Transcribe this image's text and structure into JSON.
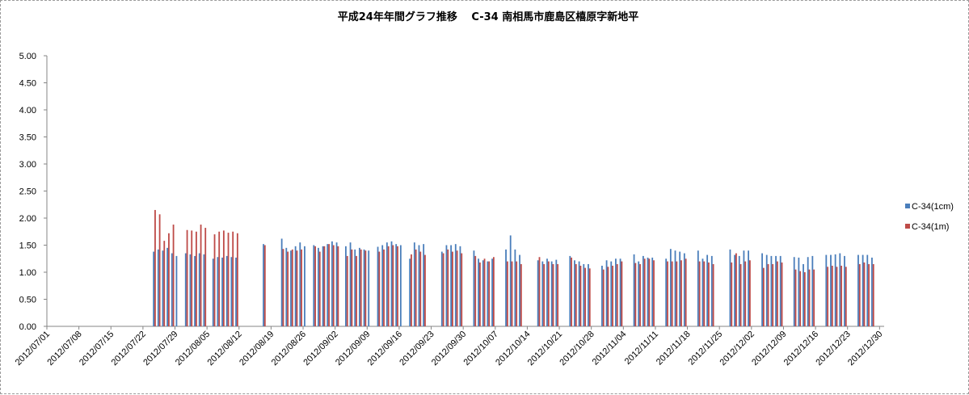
{
  "chart_data": {
    "type": "bar",
    "title": "平成24年年間グラフ推移　 C-34 南相馬市鹿島区橲原字新地平",
    "ylim": [
      0,
      5
    ],
    "yticks": [
      "0.00",
      "0.50",
      "1.00",
      "1.50",
      "2.00",
      "2.50",
      "3.00",
      "3.50",
      "4.00",
      "4.50",
      "5.00"
    ],
    "x_start": "2012/07/01",
    "x_end": "2012/12/30",
    "xticks": [
      "2012/07/01",
      "2012/07/08",
      "2012/07/15",
      "2012/07/22",
      "2012/07/29",
      "2012/08/05",
      "2012/08/12",
      "2012/08/19",
      "2012/08/26",
      "2012/09/02",
      "2012/09/09",
      "2012/09/16",
      "2012/09/23",
      "2012/09/30",
      "2012/10/07",
      "2012/10/14",
      "2012/10/21",
      "2012/10/28",
      "2012/11/04",
      "2012/11/11",
      "2012/11/18",
      "2012/11/25",
      "2012/12/02",
      "2012/12/09",
      "2012/12/16",
      "2012/12/23",
      "2012/12/30"
    ],
    "grid": false,
    "legend_position": "right",
    "series": [
      {
        "name": "C-34(1cm)",
        "color": "#4a7ebb",
        "points": [
          [
            "2012/07/24",
            1.38
          ],
          [
            "2012/07/25",
            1.42
          ],
          [
            "2012/07/26",
            1.4
          ],
          [
            "2012/07/27",
            1.45
          ],
          [
            "2012/07/28",
            1.35
          ],
          [
            "2012/07/29",
            1.3
          ],
          [
            "2012/07/31",
            1.35
          ],
          [
            "2012/08/01",
            1.33
          ],
          [
            "2012/08/02",
            1.3
          ],
          [
            "2012/08/03",
            1.35
          ],
          [
            "2012/08/04",
            1.33
          ],
          [
            "2012/08/06",
            1.25
          ],
          [
            "2012/08/07",
            1.28
          ],
          [
            "2012/08/08",
            1.27
          ],
          [
            "2012/08/09",
            1.3
          ],
          [
            "2012/08/10",
            1.28
          ],
          [
            "2012/08/11",
            1.27
          ],
          [
            "2012/08/17",
            1.52
          ],
          [
            "2012/08/21",
            1.62
          ],
          [
            "2012/08/22",
            1.45
          ],
          [
            "2012/08/23",
            1.4
          ],
          [
            "2012/08/24",
            1.48
          ],
          [
            "2012/08/25",
            1.55
          ],
          [
            "2012/08/26",
            1.48
          ],
          [
            "2012/08/28",
            1.5
          ],
          [
            "2012/08/29",
            1.45
          ],
          [
            "2012/08/30",
            1.48
          ],
          [
            "2012/08/31",
            1.52
          ],
          [
            "2012/09/01",
            1.57
          ],
          [
            "2012/09/02",
            1.55
          ],
          [
            "2012/09/04",
            1.48
          ],
          [
            "2012/09/05",
            1.55
          ],
          [
            "2012/09/06",
            1.42
          ],
          [
            "2012/09/07",
            1.45
          ],
          [
            "2012/09/08",
            1.42
          ],
          [
            "2012/09/09",
            1.4
          ],
          [
            "2012/09/11",
            1.47
          ],
          [
            "2012/09/12",
            1.5
          ],
          [
            "2012/09/13",
            1.55
          ],
          [
            "2012/09/14",
            1.57
          ],
          [
            "2012/09/15",
            1.52
          ],
          [
            "2012/09/16",
            1.5
          ],
          [
            "2012/09/18",
            1.25
          ],
          [
            "2012/09/19",
            1.55
          ],
          [
            "2012/09/20",
            1.5
          ],
          [
            "2012/09/21",
            1.52
          ],
          [
            "2012/09/25",
            1.38
          ],
          [
            "2012/09/26",
            1.5
          ],
          [
            "2012/09/27",
            1.5
          ],
          [
            "2012/09/28",
            1.52
          ],
          [
            "2012/09/29",
            1.48
          ],
          [
            "2012/10/02",
            1.4
          ],
          [
            "2012/10/03",
            1.25
          ],
          [
            "2012/10/04",
            1.22
          ],
          [
            "2012/10/05",
            1.2
          ],
          [
            "2012/10/06",
            1.25
          ],
          [
            "2012/10/09",
            1.42
          ],
          [
            "2012/10/10",
            1.68
          ],
          [
            "2012/10/11",
            1.42
          ],
          [
            "2012/10/12",
            1.32
          ],
          [
            "2012/10/16",
            1.22
          ],
          [
            "2012/10/17",
            1.2
          ],
          [
            "2012/10/18",
            1.25
          ],
          [
            "2012/10/19",
            1.2
          ],
          [
            "2012/10/20",
            1.23
          ],
          [
            "2012/10/23",
            1.3
          ],
          [
            "2012/10/24",
            1.22
          ],
          [
            "2012/10/25",
            1.2
          ],
          [
            "2012/10/26",
            1.15
          ],
          [
            "2012/10/27",
            1.15
          ],
          [
            "2012/10/30",
            1.12
          ],
          [
            "2012/10/31",
            1.22
          ],
          [
            "2012/11/01",
            1.2
          ],
          [
            "2012/11/02",
            1.25
          ],
          [
            "2012/11/03",
            1.25
          ],
          [
            "2012/11/06",
            1.33
          ],
          [
            "2012/11/07",
            1.2
          ],
          [
            "2012/11/08",
            1.3
          ],
          [
            "2012/11/09",
            1.27
          ],
          [
            "2012/11/10",
            1.27
          ],
          [
            "2012/11/13",
            1.25
          ],
          [
            "2012/11/14",
            1.43
          ],
          [
            "2012/11/15",
            1.4
          ],
          [
            "2012/11/16",
            1.38
          ],
          [
            "2012/11/17",
            1.35
          ],
          [
            "2012/11/20",
            1.4
          ],
          [
            "2012/11/21",
            1.25
          ],
          [
            "2012/11/22",
            1.32
          ],
          [
            "2012/11/23",
            1.3
          ],
          [
            "2012/11/27",
            1.42
          ],
          [
            "2012/11/28",
            1.32
          ],
          [
            "2012/11/29",
            1.3
          ],
          [
            "2012/11/30",
            1.4
          ],
          [
            "2012/12/01",
            1.4
          ],
          [
            "2012/12/04",
            1.35
          ],
          [
            "2012/12/05",
            1.32
          ],
          [
            "2012/12/06",
            1.3
          ],
          [
            "2012/12/07",
            1.3
          ],
          [
            "2012/12/08",
            1.3
          ],
          [
            "2012/12/11",
            1.28
          ],
          [
            "2012/12/12",
            1.27
          ],
          [
            "2012/12/13",
            1.15
          ],
          [
            "2012/12/14",
            1.28
          ],
          [
            "2012/12/15",
            1.3
          ],
          [
            "2012/12/18",
            1.32
          ],
          [
            "2012/12/19",
            1.32
          ],
          [
            "2012/12/20",
            1.33
          ],
          [
            "2012/12/21",
            1.35
          ],
          [
            "2012/12/22",
            1.3
          ],
          [
            "2012/12/25",
            1.32
          ],
          [
            "2012/12/26",
            1.32
          ],
          [
            "2012/12/27",
            1.32
          ],
          [
            "2012/12/28",
            1.27
          ]
        ]
      },
      {
        "name": "C-34(1m)",
        "color": "#be4b48",
        "points": [
          [
            "2012/07/24",
            2.15
          ],
          [
            "2012/07/25",
            2.07
          ],
          [
            "2012/07/26",
            1.58
          ],
          [
            "2012/07/27",
            1.72
          ],
          [
            "2012/07/28",
            1.88
          ],
          [
            "2012/07/31",
            1.78
          ],
          [
            "2012/08/01",
            1.77
          ],
          [
            "2012/08/02",
            1.75
          ],
          [
            "2012/08/03",
            1.88
          ],
          [
            "2012/08/04",
            1.82
          ],
          [
            "2012/08/06",
            1.7
          ],
          [
            "2012/08/07",
            1.75
          ],
          [
            "2012/08/08",
            1.77
          ],
          [
            "2012/08/09",
            1.73
          ],
          [
            "2012/08/10",
            1.75
          ],
          [
            "2012/08/11",
            1.72
          ],
          [
            "2012/08/17",
            1.5
          ],
          [
            "2012/08/21",
            1.43
          ],
          [
            "2012/08/22",
            1.38
          ],
          [
            "2012/08/23",
            1.42
          ],
          [
            "2012/08/24",
            1.4
          ],
          [
            "2012/08/25",
            1.42
          ],
          [
            "2012/08/28",
            1.48
          ],
          [
            "2012/08/29",
            1.38
          ],
          [
            "2012/08/30",
            1.48
          ],
          [
            "2012/08/31",
            1.52
          ],
          [
            "2012/09/01",
            1.5
          ],
          [
            "2012/09/02",
            1.48
          ],
          [
            "2012/09/04",
            1.3
          ],
          [
            "2012/09/05",
            1.42
          ],
          [
            "2012/09/06",
            1.3
          ],
          [
            "2012/09/07",
            1.42
          ],
          [
            "2012/09/08",
            1.4
          ],
          [
            "2012/09/11",
            1.38
          ],
          [
            "2012/09/12",
            1.42
          ],
          [
            "2012/09/13",
            1.48
          ],
          [
            "2012/09/14",
            1.5
          ],
          [
            "2012/09/15",
            1.48
          ],
          [
            "2012/09/18",
            1.33
          ],
          [
            "2012/09/19",
            1.42
          ],
          [
            "2012/09/20",
            1.38
          ],
          [
            "2012/09/21",
            1.32
          ],
          [
            "2012/09/25",
            1.35
          ],
          [
            "2012/09/26",
            1.42
          ],
          [
            "2012/09/27",
            1.38
          ],
          [
            "2012/09/28",
            1.4
          ],
          [
            "2012/09/29",
            1.35
          ],
          [
            "2012/10/02",
            1.3
          ],
          [
            "2012/10/03",
            1.18
          ],
          [
            "2012/10/04",
            1.25
          ],
          [
            "2012/10/05",
            1.2
          ],
          [
            "2012/10/06",
            1.28
          ],
          [
            "2012/10/09",
            1.2
          ],
          [
            "2012/10/10",
            1.2
          ],
          [
            "2012/10/11",
            1.2
          ],
          [
            "2012/10/12",
            1.15
          ],
          [
            "2012/10/16",
            1.28
          ],
          [
            "2012/10/17",
            1.15
          ],
          [
            "2012/10/18",
            1.2
          ],
          [
            "2012/10/19",
            1.15
          ],
          [
            "2012/10/20",
            1.15
          ],
          [
            "2012/10/23",
            1.27
          ],
          [
            "2012/10/24",
            1.15
          ],
          [
            "2012/10/25",
            1.12
          ],
          [
            "2012/10/26",
            1.08
          ],
          [
            "2012/10/27",
            1.07
          ],
          [
            "2012/10/30",
            1.05
          ],
          [
            "2012/10/31",
            1.1
          ],
          [
            "2012/11/01",
            1.12
          ],
          [
            "2012/11/02",
            1.15
          ],
          [
            "2012/11/03",
            1.2
          ],
          [
            "2012/11/06",
            1.17
          ],
          [
            "2012/11/07",
            1.15
          ],
          [
            "2012/11/08",
            1.25
          ],
          [
            "2012/11/09",
            1.25
          ],
          [
            "2012/11/10",
            1.22
          ],
          [
            "2012/11/13",
            1.2
          ],
          [
            "2012/11/14",
            1.2
          ],
          [
            "2012/11/15",
            1.2
          ],
          [
            "2012/11/16",
            1.22
          ],
          [
            "2012/11/17",
            1.25
          ],
          [
            "2012/11/20",
            1.2
          ],
          [
            "2012/11/21",
            1.2
          ],
          [
            "2012/11/22",
            1.18
          ],
          [
            "2012/11/23",
            1.15
          ],
          [
            "2012/11/27",
            1.18
          ],
          [
            "2012/11/28",
            1.35
          ],
          [
            "2012/11/29",
            1.15
          ],
          [
            "2012/11/30",
            1.2
          ],
          [
            "2012/12/01",
            1.22
          ],
          [
            "2012/12/04",
            1.08
          ],
          [
            "2012/12/05",
            1.15
          ],
          [
            "2012/12/06",
            1.15
          ],
          [
            "2012/12/07",
            1.2
          ],
          [
            "2012/12/08",
            1.18
          ],
          [
            "2012/12/11",
            1.05
          ],
          [
            "2012/12/12",
            1.02
          ],
          [
            "2012/12/13",
            1.0
          ],
          [
            "2012/12/14",
            1.05
          ],
          [
            "2012/12/15",
            1.05
          ],
          [
            "2012/12/18",
            1.1
          ],
          [
            "2012/12/19",
            1.12
          ],
          [
            "2012/12/20",
            1.1
          ],
          [
            "2012/12/21",
            1.12
          ],
          [
            "2012/12/22",
            1.1
          ],
          [
            "2012/12/25",
            1.15
          ],
          [
            "2012/12/26",
            1.18
          ],
          [
            "2012/12/27",
            1.15
          ],
          [
            "2012/12/28",
            1.15
          ]
        ]
      }
    ]
  }
}
